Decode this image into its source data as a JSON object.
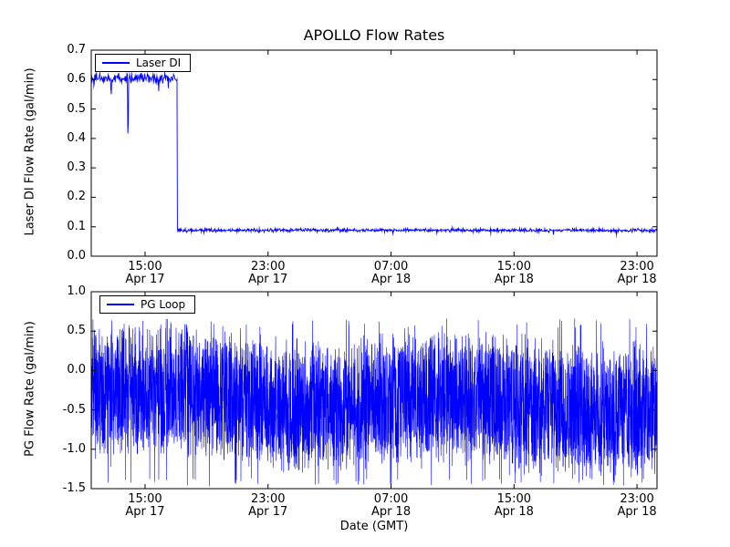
{
  "chart_data": {
    "type": "line",
    "title": "APOLLO Flow Rates",
    "xlabel": "Date (GMT)",
    "grid": false,
    "x_axis": {
      "unit": "hours since Apr 17 00:00 GMT",
      "range": [
        11.5,
        48.3
      ],
      "ticks": [
        15,
        23,
        31,
        39,
        47
      ],
      "tick_labels": [
        {
          "time": "15:00",
          "date": "Apr 17"
        },
        {
          "time": "23:00",
          "date": "Apr 17"
        },
        {
          "time": "07:00",
          "date": "Apr 18"
        },
        {
          "time": "15:00",
          "date": "Apr 18"
        },
        {
          "time": "23:00",
          "date": "Apr 18"
        }
      ]
    },
    "plots": [
      {
        "name": "laser-di",
        "ylabel": "Laser DI Flow Rate (gal/min)",
        "legend": "Laser DI",
        "legend_position": "upper left",
        "color": "#0000ff",
        "ylim": [
          0.0,
          0.7
        ],
        "yticks": [
          {
            "v": 0.0,
            "label": "0.0"
          },
          {
            "v": 0.1,
            "label": "0.1"
          },
          {
            "v": 0.2,
            "label": "0.2"
          },
          {
            "v": 0.3,
            "label": "0.3"
          },
          {
            "v": 0.4,
            "label": "0.4"
          },
          {
            "v": 0.5,
            "label": "0.5"
          },
          {
            "v": 0.6,
            "label": "0.6"
          },
          {
            "v": 0.7,
            "label": "0.7"
          }
        ],
        "series_model": {
          "description": "steady ~0.60 gal/min with small noise until ~17:06 Apr 17, brief dips to 0.56 and 0.43, then step down to ~0.09 gal/min for remainder",
          "segments": [
            {
              "t_start": 11.5,
              "t_end": 17.1,
              "mean": 0.605,
              "noise": 0.008,
              "spike_prob": 0.02,
              "spike_depth": 0.05
            },
            {
              "t_start": 17.1,
              "t_end": 48.3,
              "mean": 0.088,
              "noise": 0.003,
              "spike_prob": 0.012,
              "spike_depth": 0.012
            }
          ],
          "dips": [
            {
              "t": 12.8,
              "value": 0.56
            },
            {
              "t": 13.9,
              "value": 0.43
            }
          ],
          "step_time": 17.1
        }
      },
      {
        "name": "pg-loop",
        "ylabel": "PG Flow Rate (gal/min)",
        "legend": "PG Loop",
        "legend_position": "upper left",
        "color": "#0000ff",
        "ylim": [
          -1.5,
          1.0
        ],
        "yticks": [
          {
            "v": -1.5,
            "label": "-1.5"
          },
          {
            "v": -1.0,
            "label": "-1.0"
          },
          {
            "v": -0.5,
            "label": "-0.5"
          },
          {
            "v": 0.0,
            "label": "0.0"
          },
          {
            "v": 0.5,
            "label": "0.5"
          },
          {
            "v": 1.0,
            "label": "1.0"
          }
        ],
        "series_model": {
          "description": "dense high-frequency oscillation centered ~-0.4 gal/min, spanning roughly -1.45 to +0.65 for the entire record",
          "mean": -0.38,
          "amp": 0.85,
          "min": -1.47,
          "max": 0.66,
          "samples": 4200
        }
      }
    ]
  }
}
